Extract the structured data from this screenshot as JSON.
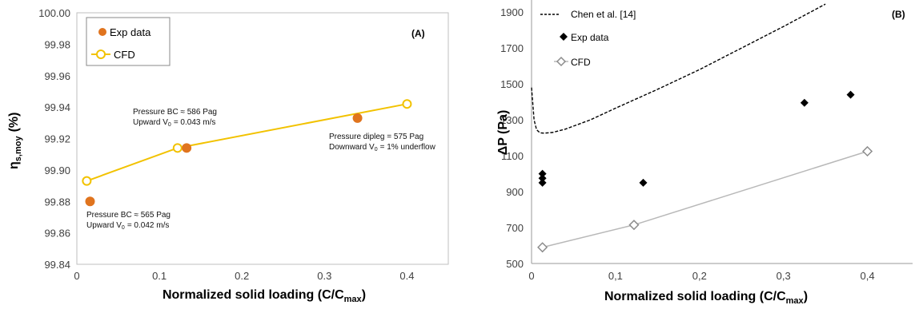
{
  "colors": {
    "exp_a": "#E0741E",
    "cfd_a": "#F2C200",
    "exp_b": "#000000",
    "cfd_b": "#B8B8B8",
    "chen": "#000000"
  },
  "chart_data": [
    {
      "type": "scatter",
      "panel_label": "(A)",
      "ylabel_main": "η",
      "ylabel_sub": "s,moy",
      "ylabel_unit": "(%)",
      "xlabel_main": "Normalized solid loading (C/C",
      "xlabel_sub": "max",
      "xlabel_end": ")",
      "xlim": [
        0,
        0.45
      ],
      "ylim": [
        99.84,
        100.0
      ],
      "xticks": [
        0,
        0.1,
        0.2,
        0.3,
        0.4
      ],
      "xtick_labels": [
        "0",
        "0.1",
        "0.2",
        "0.3",
        "0.4"
      ],
      "yticks": [
        99.84,
        99.86,
        99.88,
        99.9,
        99.92,
        99.94,
        99.96,
        99.98,
        100.0
      ],
      "ytick_labels": [
        "99.84",
        "99.86",
        "99.88",
        "99.90",
        "99.92",
        "99.94",
        "99.96",
        "99.98",
        "100.00"
      ],
      "legend_position": "top-left",
      "series": [
        {
          "name": "Exp data",
          "style": "filled-circle",
          "x": [
            0.016,
            0.133,
            0.34
          ],
          "y": [
            99.88,
            99.914,
            99.933
          ]
        },
        {
          "name": "CFD",
          "style": "open-circle-line",
          "x": [
            0.012,
            0.122,
            0.4
          ],
          "y": [
            99.893,
            99.914,
            99.942
          ]
        }
      ],
      "annotations": [
        {
          "lines": [
            "Pressure BC ≈ 586 Pag",
            "Upward V",
            "= 0.043 m/s"
          ]
        },
        {
          "lines": [
            "Pressure dipleg = 575 Pag",
            "Downward V",
            "= 1% underflow"
          ]
        },
        {
          "lines": [
            "Pressure BC ≈ 565 Pag",
            "Upward V",
            "= 0.042 m/s"
          ]
        }
      ],
      "annotation_sub": "0"
    },
    {
      "type": "scatter",
      "panel_label": "(B)",
      "ylabel": "ΔP (Pa)",
      "xlabel_main": "Normalized solid loading (C/C",
      "xlabel_sub": "max",
      "xlabel_end": ")",
      "xlim": [
        0,
        0.45
      ],
      "ylim": [
        500,
        1950
      ],
      "xticks": [
        0,
        0.1,
        0.2,
        0.3,
        0.4
      ],
      "xtick_labels": [
        "0",
        "0,1",
        "0,2",
        "0,3",
        "0,4"
      ],
      "yticks": [
        500,
        700,
        900,
        1100,
        1300,
        1500,
        1700,
        1900
      ],
      "ytick_labels": [
        "500",
        "700",
        "900",
        "1100",
        "1300",
        "1500",
        "1700",
        "1900"
      ],
      "legend_position": "top-left",
      "series": [
        {
          "name": "Chen et al. [14]",
          "style": "dashed-line",
          "x": [
            0.0,
            0.003,
            0.006,
            0.01,
            0.015,
            0.025,
            0.04,
            0.07,
            0.1,
            0.15,
            0.2,
            0.25,
            0.3,
            0.35
          ],
          "y": [
            1480,
            1300,
            1245,
            1228,
            1226,
            1230,
            1248,
            1300,
            1365,
            1470,
            1580,
            1700,
            1820,
            1945
          ]
        },
        {
          "name": "Exp data",
          "style": "filled-diamond",
          "x": [
            0.013,
            0.013,
            0.013,
            0.133,
            0.325,
            0.38
          ],
          "y": [
            1000,
            975,
            950,
            950,
            1395,
            1440
          ]
        },
        {
          "name": "CFD",
          "style": "open-diamond-line",
          "x": [
            0.013,
            0.122,
            0.4
          ],
          "y": [
            590,
            715,
            1125
          ]
        }
      ]
    }
  ]
}
